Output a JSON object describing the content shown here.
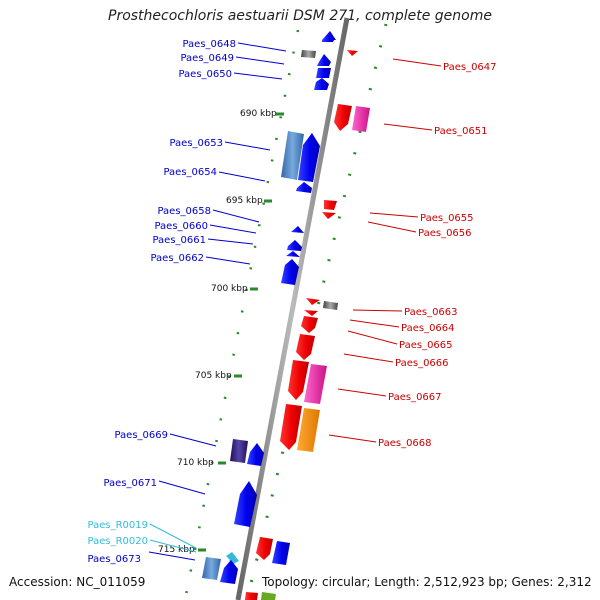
{
  "title": "Prosthecochloris aestuarii DSM 271, complete genome",
  "accession": "Accession: NC_011059",
  "summary": "Topology: circular; Length: 2,512,923 bp; Genes: 2,312",
  "colors": {
    "plus_label": "#0000cc",
    "minus_label": "#cc0000",
    "rna_label": "#33bbdd",
    "tick": "#2a8a2a",
    "backbone": "#8c8c8c"
  },
  "scale_labels": [
    "690 kbp",
    "695 kbp",
    "700 kbp",
    "705 kbp",
    "710 kbp",
    "715 kbp"
  ],
  "plus_genes": [
    {
      "label": "Paes_0648",
      "kind": "cds"
    },
    {
      "label": "Paes_0649",
      "kind": "cds"
    },
    {
      "label": "Paes_0650",
      "kind": "cds"
    },
    {
      "label": "Paes_0653",
      "kind": "cds"
    },
    {
      "label": "Paes_0654",
      "kind": "cds"
    },
    {
      "label": "Paes_0658",
      "kind": "cds"
    },
    {
      "label": "Paes_0660",
      "kind": "cds"
    },
    {
      "label": "Paes_0661",
      "kind": "cds"
    },
    {
      "label": "Paes_0662",
      "kind": "cds"
    },
    {
      "label": "Paes_0669",
      "kind": "cds"
    },
    {
      "label": "Paes_0671",
      "kind": "cds"
    },
    {
      "label": "Paes_R0019",
      "kind": "rna"
    },
    {
      "label": "Paes_R0020",
      "kind": "rna"
    },
    {
      "label": "Paes_0673",
      "kind": "cds"
    }
  ],
  "minus_genes": [
    {
      "label": "Paes_0647"
    },
    {
      "label": "Paes_0651"
    },
    {
      "label": "Paes_0655"
    },
    {
      "label": "Paes_0656"
    },
    {
      "label": "Paes_0663"
    },
    {
      "label": "Paes_0664"
    },
    {
      "label": "Paes_0665"
    },
    {
      "label": "Paes_0666"
    },
    {
      "label": "Paes_0667"
    },
    {
      "label": "Paes_0668"
    }
  ]
}
